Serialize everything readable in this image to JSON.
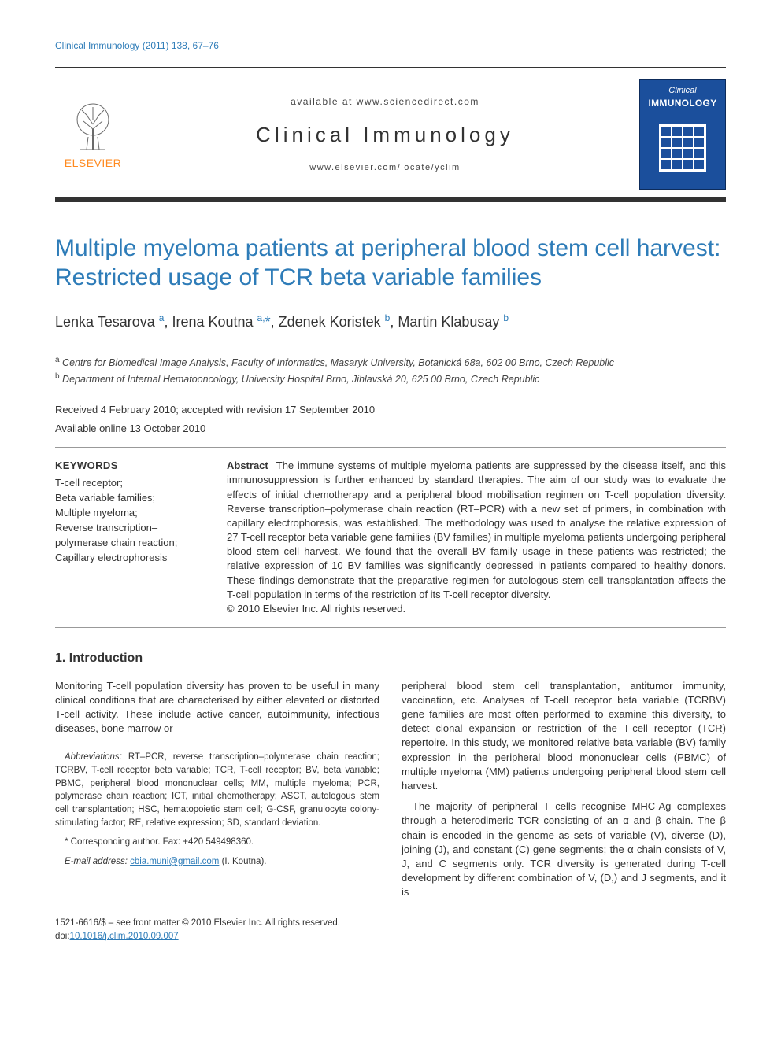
{
  "colors": {
    "link_blue": "#2e7cb8",
    "publisher_orange": "#ff8a1f",
    "cover_blue": "#1b4f9c",
    "text": "#333333",
    "rule": "#999999",
    "background": "#ffffff"
  },
  "typography": {
    "base_family": "Arial, Helvetica, sans-serif",
    "base_size_pt": 10,
    "title_size_pt": 22,
    "journal_name_size_pt": 20,
    "authors_size_pt": 14,
    "heading_size_pt": 12
  },
  "running_header": "Clinical Immunology (2011) 138, 67–76",
  "masthead": {
    "available_at": "available at www.sciencedirect.com",
    "journal_name": "Clinical Immunology",
    "journal_url": "www.elsevier.com/locate/yclim",
    "publisher": "ELSEVIER",
    "cover_label_top": "Clinical",
    "cover_label_main": "IMMUNOLOGY"
  },
  "article": {
    "title": "Multiple myeloma patients at peripheral blood stem cell harvest: Restricted usage of TCR beta variable families",
    "authors_html": "Lenka Tesarova <sup>a</sup>, Irena Koutna <sup>a,</sup><span class='sup-star'>*</span>, Zdenek Koristek <sup>b</sup>, Martin Klabusay <sup>b</sup>",
    "affiliations": [
      "a Centre for Biomedical Image Analysis, Faculty of Informatics, Masaryk University, Botanická 68a, 602 00 Brno, Czech Republic",
      "b Department of Internal Hematooncology, University Hospital Brno, Jihlavská 20, 625 00 Brno, Czech Republic"
    ],
    "received": "Received 4 February 2010; accepted with revision 17 September 2010",
    "available_online": "Available online 13 October 2010"
  },
  "keywords": {
    "heading": "KEYWORDS",
    "items": "T-cell receptor;\nBeta variable families;\nMultiple myeloma;\nReverse transcription–polymerase chain reaction;\nCapillary electrophoresis"
  },
  "abstract": {
    "label": "Abstract",
    "text": "The immune systems of multiple myeloma patients are suppressed by the disease itself, and this immunosuppression is further enhanced by standard therapies. The aim of our study was to evaluate the effects of initial chemotherapy and a peripheral blood mobilisation regimen on T-cell population diversity. Reverse transcription–polymerase chain reaction (RT–PCR) with a new set of primers, in combination with capillary electrophoresis, was established. The methodology was used to analyse the relative expression of 27 T-cell receptor beta variable gene families (BV families) in multiple myeloma patients undergoing peripheral blood stem cell harvest. We found that the overall BV family usage in these patients was restricted; the relative expression of 10 BV families was significantly depressed in patients compared to healthy donors. These findings demonstrate that the preparative regimen for autologous stem cell transplantation affects the T-cell population in terms of the restriction of its T-cell receptor diversity.",
    "copyright": "© 2010 Elsevier Inc. All rights reserved."
  },
  "section1": {
    "heading": "1. Introduction",
    "para1": "Monitoring T-cell population diversity has proven to be useful in many clinical conditions that are characterised by either elevated or distorted T-cell activity. These include active cancer, autoimmunity, infectious diseases, bone marrow or",
    "para2": "peripheral blood stem cell transplantation, antitumor immunity, vaccination, etc. Analyses of T-cell receptor beta variable (TCRBV) gene families are most often performed to examine this diversity, to detect clonal expansion or restriction of the T-cell receptor (TCR) repertoire. In this study, we monitored relative beta variable (BV) family expression in the peripheral blood mononuclear cells (PBMC) of multiple myeloma (MM) patients undergoing peripheral blood stem cell harvest.",
    "para3": "The majority of peripheral T cells recognise MHC-Ag complexes through a heterodimeric TCR consisting of an α and β chain. The β chain is encoded in the genome as sets of variable (V), diverse (D), joining (J), and constant (C) gene segments; the α chain consists of V, J, and C segments only. TCR diversity is generated during T-cell development by different combination of V, (D,) and J segments, and it is"
  },
  "footnotes": {
    "abbrev_label": "Abbreviations:",
    "abbrev_text": " RT–PCR, reverse transcription–polymerase chain reaction; TCRBV, T-cell receptor beta variable; TCR, T-cell receptor; BV, beta variable; PBMC, peripheral blood mononuclear cells; MM, multiple myeloma; PCR, polymerase chain reaction; ICT, initial chemotherapy; ASCT, autologous stem cell transplantation; HSC, hematopoietic stem cell; G-CSF, granulocyte colony-stimulating factor; RE, relative expression; SD, standard deviation.",
    "corresponding": "* Corresponding author. Fax: +420 549498360.",
    "email_label": "E-mail address:",
    "email": "cbia.muni@gmail.com",
    "email_who": " (I. Koutna)."
  },
  "footer": {
    "front_matter": "1521-6616/$ – see front matter © 2010 Elsevier Inc. All rights reserved.",
    "doi_label": "doi:",
    "doi": "10.1016/j.clim.2010.09.007"
  }
}
